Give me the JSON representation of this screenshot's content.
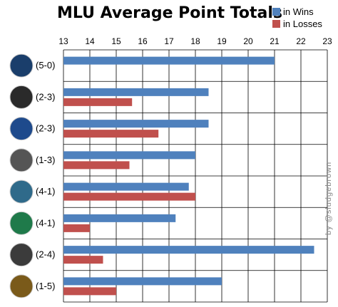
{
  "chart_data": {
    "type": "bar",
    "orientation": "horizontal",
    "title": "MLU Average Point Totals",
    "xlim": [
      13,
      23
    ],
    "x_ticks": [
      "13",
      "14",
      "15",
      "16",
      "17",
      "18",
      "19",
      "20",
      "21",
      "22",
      "23"
    ],
    "grid": true,
    "legend_position": "top-right",
    "categories": [
      "(5-0)",
      "(2-3)",
      "(2-3)",
      "(1-3)",
      "(4-1)",
      "(4-1)",
      "(2-4)",
      "(1-5)"
    ],
    "team_logos": [
      "whitecaps-logo",
      "revolution-logo",
      "spinners-logo",
      "dc-current-logo",
      "dogfish-logo",
      "rainmakers-logo",
      "nighthawks-logo",
      "stags-logo"
    ],
    "series": [
      {
        "name": "in Wins",
        "color": "#4f81bd",
        "values": [
          21.0,
          18.5,
          18.5,
          18.0,
          17.75,
          17.25,
          22.5,
          19.0
        ]
      },
      {
        "name": "in Losses",
        "color": "#c0504d",
        "values": [
          null,
          15.6,
          16.6,
          15.5,
          18.0,
          14.0,
          14.5,
          15.0
        ]
      }
    ]
  },
  "credit": "by @sludgebrown"
}
